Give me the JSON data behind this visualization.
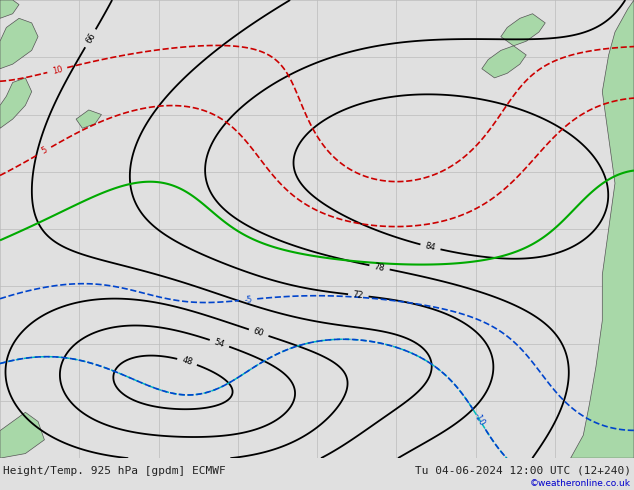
{
  "title_left": "Height/Temp. 925 hPa [gpdm] ECMWF",
  "title_right": "Tu 04-06-2024 12:00 UTC (12+240)",
  "copyright": "©weatheronline.co.uk",
  "bg_color": "#e0e0e0",
  "land_color": "#a8d8a8",
  "ocean_color": "#e0e0e0",
  "height_contour_color": "#000000",
  "temp_positive_color": "#cc0000",
  "temp_negative_color": "#0044cc",
  "temp_zero_color": "#00aa00",
  "temp_orange_color": "#ff8800",
  "temp_cyan_color": "#00bbbb",
  "figsize": [
    6.34,
    4.9
  ],
  "dpi": 100,
  "bottom_bar_color": "#c8c8c8",
  "bottom_text_color": "#222222",
  "title_fontsize": 8,
  "copyright_color": "#0000cc"
}
